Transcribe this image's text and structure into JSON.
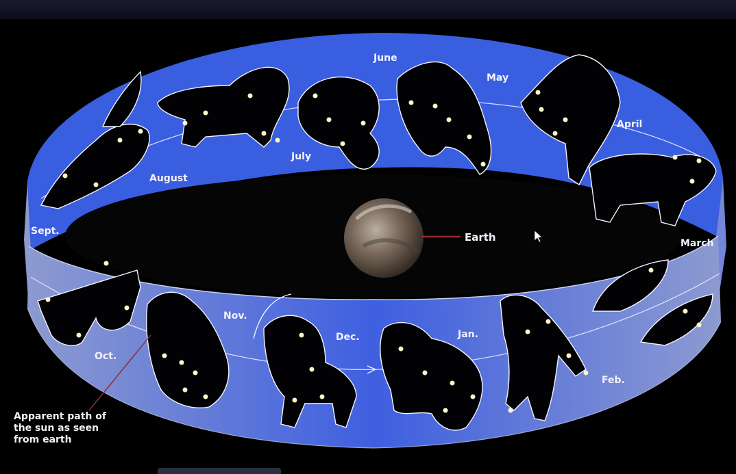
{
  "labels": {
    "earth": "Earth",
    "sun_path_note": "Apparent path of\nthe sun as seen\nfrom earth",
    "months": {
      "june": "June",
      "may": "May",
      "april": "April",
      "july": "July",
      "august": "August",
      "sept": "Sept.",
      "march": "March",
      "nov": "Nov.",
      "oct": "Oct.",
      "dec": "Dec.",
      "jan": "Jan.",
      "feb": "Feb."
    }
  },
  "colors": {
    "band": "#3a5ee0",
    "band_light": "#5a78e8",
    "band_faint": "#7f8ec8",
    "figure": "#020205",
    "star": "#fff6c8",
    "earth_pointer": "#9b2a2a",
    "sun_path_pointer": "#8a3030"
  },
  "icons": {
    "cursor": "mouse-pointer-icon"
  }
}
